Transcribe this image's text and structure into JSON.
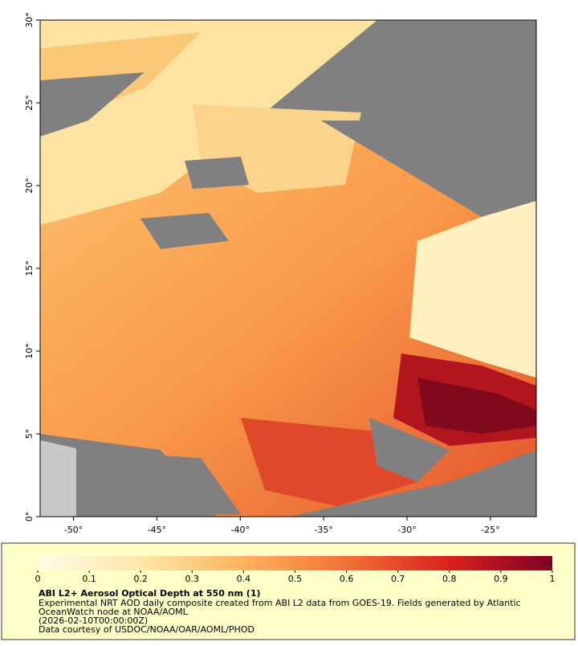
{
  "map": {
    "xlim": [
      -52,
      -22.25
    ],
    "ylim": [
      0,
      30
    ],
    "xticks": [
      {
        "value": -50,
        "label": "-50°"
      },
      {
        "value": -45,
        "label": "-45°"
      },
      {
        "value": -40,
        "label": "-40°"
      },
      {
        "value": -35,
        "label": "-35°"
      },
      {
        "value": -30,
        "label": "-30°"
      },
      {
        "value": -25,
        "label": "-25°"
      }
    ],
    "yticks": [
      {
        "value": 0,
        "label": "0°"
      },
      {
        "value": 5,
        "label": "5°"
      },
      {
        "value": 10,
        "label": "10°"
      },
      {
        "value": 15,
        "label": "15°"
      },
      {
        "value": 20,
        "label": "20°"
      },
      {
        "value": 25,
        "label": "25°"
      },
      {
        "value": 30,
        "label": "30°"
      }
    ]
  },
  "colorbar": {
    "lim": [
      0,
      1
    ],
    "ticks": [
      0,
      0.1,
      0.2,
      0.3,
      0.4,
      0.5,
      0.6,
      0.7,
      0.8,
      0.9,
      1
    ]
  },
  "caption": {
    "title": "ABI L2+ Aerosol Optical Depth at 550 nm (1)",
    "lines": [
      "Experimental NRT AOD daily composite created from ABI L2 data from GOES-19. Fields generated by Atlantic",
      "OceanWatch node at NOAA/AOML",
      "(2026-02-10T00:00:00Z)",
      "Data courtesy of USDOC/NOAA/OAR/AOML/PHOD"
    ]
  }
}
